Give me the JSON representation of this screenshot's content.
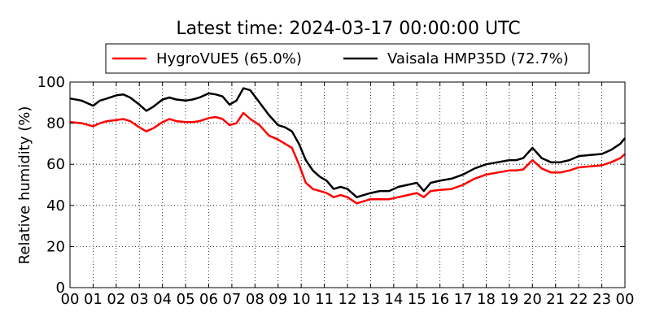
{
  "chart_data": {
    "type": "line",
    "title": "Latest time: 2024-03-17 00:00:00 UTC",
    "ylabel": "Relative humidity (%)",
    "xlabel": "",
    "xlim": [
      0,
      24
    ],
    "ylim": [
      0,
      100
    ],
    "xticks": [
      "00",
      "01",
      "02",
      "03",
      "04",
      "05",
      "06",
      "07",
      "08",
      "09",
      "10",
      "11",
      "12",
      "13",
      "14",
      "15",
      "16",
      "17",
      "18",
      "19",
      "20",
      "21",
      "22",
      "23",
      "00"
    ],
    "yticks": [
      "0",
      "20",
      "40",
      "60",
      "80",
      "100"
    ],
    "grid": true,
    "legend": {
      "placement": "top",
      "columns": 2
    },
    "series": [
      {
        "name": "HygroVUE5 (65.0%)",
        "color": "#ff0000",
        "x": [
          0,
          0.5,
          1,
          1.3,
          1.6,
          2,
          2.3,
          2.6,
          3,
          3.3,
          3.6,
          4,
          4.3,
          4.6,
          5,
          5.3,
          5.6,
          6,
          6.3,
          6.6,
          6.9,
          7.2,
          7.5,
          7.8,
          8.2,
          8.6,
          9,
          9.3,
          9.6,
          9.9,
          10.2,
          10.5,
          10.8,
          11.1,
          11.4,
          11.7,
          12,
          12.4,
          12.7,
          13,
          13.4,
          13.8,
          14.2,
          14.6,
          15,
          15.3,
          15.6,
          16,
          16.5,
          17,
          17.5,
          18,
          18.5,
          19,
          19.3,
          19.6,
          20,
          20.4,
          20.8,
          21.2,
          21.6,
          22,
          22.5,
          23,
          23.4,
          23.8,
          24
        ],
        "values": [
          80.5,
          80,
          78.5,
          80,
          81,
          81.5,
          82,
          81,
          78,
          76,
          77.5,
          80.5,
          82,
          81,
          80.5,
          80.5,
          81,
          82.5,
          83,
          82,
          79,
          80,
          85,
          82,
          79,
          74,
          72,
          70,
          68,
          60,
          51,
          48,
          47,
          46,
          44,
          45,
          44,
          41,
          42,
          43,
          43,
          43,
          44,
          45,
          46,
          44,
          47,
          47.5,
          48,
          50,
          53,
          55,
          56,
          57,
          57,
          57.5,
          62,
          58,
          56,
          56,
          57,
          58.5,
          59,
          59.5,
          61,
          63,
          65
        ]
      },
      {
        "name": "Vaisala HMP35D (72.7%)",
        "color": "#000000",
        "x": [
          0,
          0.5,
          1,
          1.3,
          1.6,
          2,
          2.3,
          2.6,
          3,
          3.3,
          3.6,
          4,
          4.3,
          4.6,
          5,
          5.3,
          5.6,
          6,
          6.3,
          6.6,
          6.9,
          7.2,
          7.5,
          7.8,
          8.2,
          8.6,
          9,
          9.3,
          9.6,
          9.9,
          10.2,
          10.5,
          10.8,
          11.1,
          11.4,
          11.7,
          12,
          12.4,
          12.7,
          13,
          13.4,
          13.8,
          14.2,
          14.6,
          15,
          15.3,
          15.6,
          16,
          16.5,
          17,
          17.5,
          18,
          18.5,
          19,
          19.3,
          19.6,
          20,
          20.4,
          20.8,
          21.2,
          21.6,
          22,
          22.5,
          23,
          23.4,
          23.8,
          24
        ],
        "values": [
          92,
          91,
          88.5,
          91,
          92,
          93.5,
          94,
          92.5,
          89,
          86,
          88,
          91.5,
          92.5,
          91.5,
          91,
          91.5,
          92.5,
          94.5,
          94,
          93,
          89,
          91,
          97,
          96,
          90,
          84,
          79,
          78,
          76,
          70,
          62,
          57,
          54,
          52,
          48,
          49,
          48,
          44,
          45,
          46,
          47,
          47,
          49,
          50,
          51,
          47,
          51,
          52,
          53,
          55,
          58,
          60,
          61,
          62,
          62,
          63,
          68,
          63,
          61,
          61,
          62,
          64,
          64.5,
          65,
          67,
          70,
          72.7
        ]
      }
    ]
  }
}
